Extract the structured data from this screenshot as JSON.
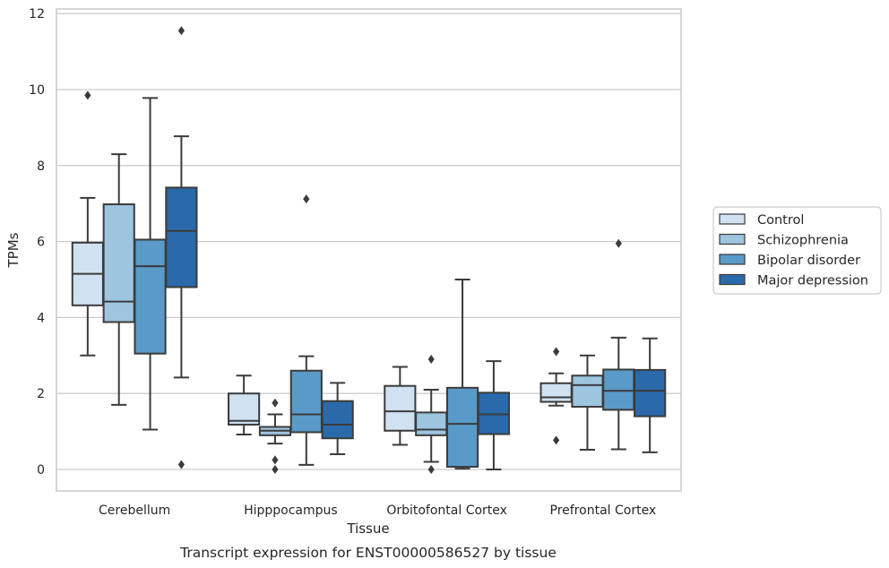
{
  "chart_data": {
    "type": "box",
    "title": "",
    "caption": "Transcript expression for ENST00000586527 by tissue",
    "xlabel": "Tissue",
    "ylabel": "TPMs",
    "ylim": [
      -0.55,
      12.2
    ],
    "yticks": [
      0,
      2,
      4,
      6,
      8,
      10,
      12
    ],
    "grid": "horizontal",
    "legend_position": "right",
    "categories": [
      "Cerebellum",
      "Hipppocampus",
      "Orbitofontal Cortex",
      "Prefrontal Cortex"
    ],
    "series": [
      {
        "name": "Control",
        "color": "#d0e1f2",
        "boxes": [
          {
            "whisker_low": 3.0,
            "q1": 4.32,
            "median": 5.15,
            "q3": 5.97,
            "whisker_high": 7.15,
            "outliers": [
              9.85
            ]
          },
          {
            "whisker_low": 0.92,
            "q1": 1.18,
            "median": 1.28,
            "q3": 2.0,
            "whisker_high": 2.47,
            "outliers": []
          },
          {
            "whisker_low": 0.65,
            "q1": 1.02,
            "median": 1.53,
            "q3": 2.2,
            "whisker_high": 2.7,
            "outliers": []
          },
          {
            "whisker_low": 1.68,
            "q1": 1.78,
            "median": 1.9,
            "q3": 2.27,
            "whisker_high": 2.53,
            "outliers": [
              3.1,
              0.77
            ]
          }
        ]
      },
      {
        "name": "Schizophrenia",
        "color": "#9dc5e0",
        "boxes": [
          {
            "whisker_low": 1.7,
            "q1": 3.88,
            "median": 4.42,
            "q3": 6.98,
            "whisker_high": 8.3,
            "outliers": []
          },
          {
            "whisker_low": 0.68,
            "q1": 0.9,
            "median": 1.02,
            "q3": 1.12,
            "whisker_high": 1.45,
            "outliers": [
              1.75,
              0.25,
              0.0
            ]
          },
          {
            "whisker_low": 0.2,
            "q1": 0.9,
            "median": 1.05,
            "q3": 1.5,
            "whisker_high": 2.1,
            "outliers": [
              2.9,
              0.0
            ]
          },
          {
            "whisker_low": 0.52,
            "q1": 1.65,
            "median": 2.22,
            "q3": 2.47,
            "whisker_high": 3.0,
            "outliers": []
          }
        ]
      },
      {
        "name": "Bipolar disorder",
        "color": "#5a9ac9",
        "boxes": [
          {
            "whisker_low": 1.05,
            "q1": 3.05,
            "median": 5.35,
            "q3": 6.05,
            "whisker_high": 9.78,
            "outliers": []
          },
          {
            "whisker_low": 0.12,
            "q1": 0.98,
            "median": 1.45,
            "q3": 2.6,
            "whisker_high": 2.98,
            "outliers": [
              7.12
            ]
          },
          {
            "whisker_low": 0.02,
            "q1": 0.07,
            "median": 1.2,
            "q3": 2.15,
            "whisker_high": 5.0,
            "outliers": []
          },
          {
            "whisker_low": 0.53,
            "q1": 1.57,
            "median": 2.07,
            "q3": 2.63,
            "whisker_high": 3.47,
            "outliers": [
              5.95
            ]
          }
        ]
      },
      {
        "name": "Major depression",
        "color": "#2a6aab",
        "boxes": [
          {
            "whisker_low": 2.42,
            "q1": 4.8,
            "median": 6.28,
            "q3": 7.42,
            "whisker_high": 8.77,
            "outliers": [
              11.55,
              0.13
            ]
          },
          {
            "whisker_low": 0.4,
            "q1": 0.82,
            "median": 1.18,
            "q3": 1.8,
            "whisker_high": 2.28,
            "outliers": []
          },
          {
            "whisker_low": 0.0,
            "q1": 0.93,
            "median": 1.45,
            "q3": 2.02,
            "whisker_high": 2.85,
            "outliers": []
          },
          {
            "whisker_low": 0.45,
            "q1": 1.4,
            "median": 2.07,
            "q3": 2.62,
            "whisker_high": 3.45,
            "outliers": []
          }
        ]
      }
    ]
  }
}
